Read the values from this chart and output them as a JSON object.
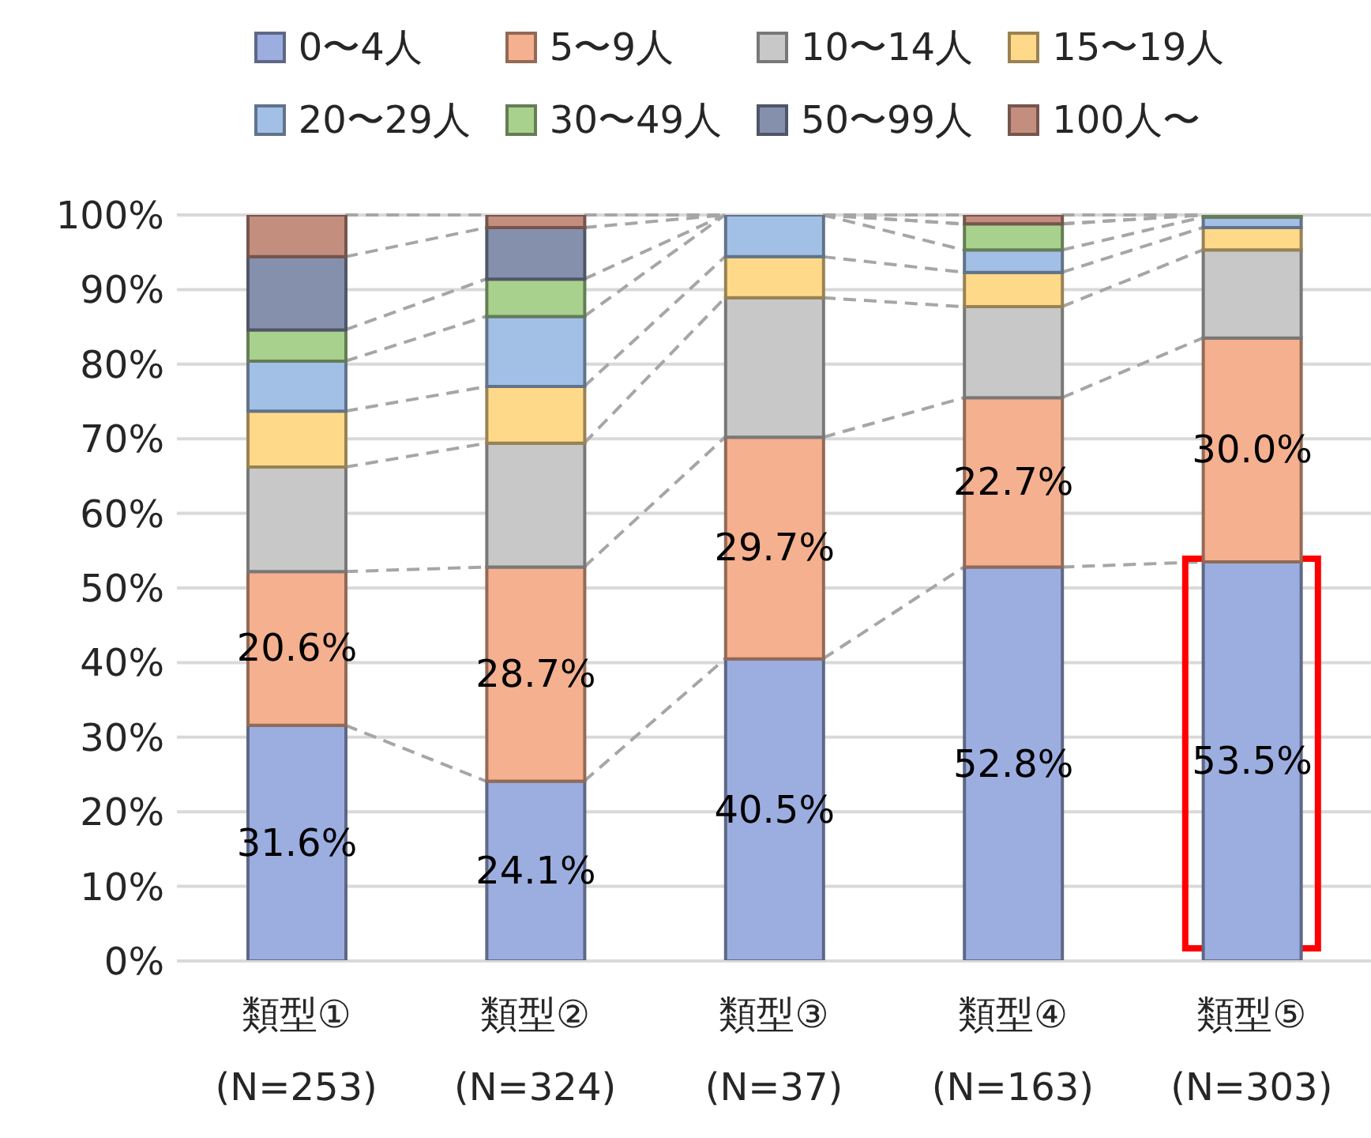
{
  "chart_data": {
    "type": "bar",
    "stacked": true,
    "categories": [
      "類型①\n(N=253)",
      "類型②\n(N=324)",
      "類型③\n(N=37)",
      "類型④\n(N=163)",
      "類型⑤\n(N=303)"
    ],
    "series": [
      {
        "name": "0〜4人",
        "color": "#9caee0",
        "values": [
          31.6,
          24.1,
          40.5,
          52.8,
          53.5
        ],
        "value_labels": [
          "31.6%",
          "24.1%",
          "40.5%",
          "52.8%",
          "53.5%"
        ]
      },
      {
        "name": "5〜9人",
        "color": "#f4b08f",
        "values": [
          20.6,
          28.7,
          29.7,
          22.7,
          30.0
        ],
        "value_labels": [
          "20.6%",
          "28.7%",
          "29.7%",
          "22.7%",
          "30.0%"
        ]
      },
      {
        "name": "10〜14人",
        "color": "#c8c8c8",
        "values": [
          14.0,
          16.6,
          18.7,
          12.2,
          11.8
        ]
      },
      {
        "name": "15〜19人",
        "color": "#ffd98a",
        "values": [
          7.5,
          7.6,
          5.5,
          4.6,
          3.0
        ]
      },
      {
        "name": "20〜29人",
        "color": "#a2c0e6",
        "values": [
          6.7,
          9.4,
          5.6,
          3.0,
          1.4
        ]
      },
      {
        "name": "30〜49人",
        "color": "#a9d18e",
        "values": [
          4.2,
          5.0,
          0,
          3.5,
          0.3
        ]
      },
      {
        "name": "50〜99人",
        "color": "#8590ad",
        "values": [
          9.8,
          6.9,
          0,
          0,
          0
        ]
      },
      {
        "name": "100人〜",
        "color": "#c48e7e",
        "values": [
          5.6,
          1.7,
          0,
          1.2,
          0
        ]
      }
    ],
    "ylim": [
      0,
      100
    ],
    "yticks": [
      {
        "value": 0,
        "label": "0%"
      },
      {
        "value": 10,
        "label": "10%"
      },
      {
        "value": 20,
        "label": "20%"
      },
      {
        "value": 30,
        "label": "30%"
      },
      {
        "value": 40,
        "label": "40%"
      },
      {
        "value": 50,
        "label": "50%"
      },
      {
        "value": 60,
        "label": "60%"
      },
      {
        "value": 70,
        "label": "70%"
      },
      {
        "value": 80,
        "label": "80%"
      },
      {
        "value": 90,
        "label": "90%"
      },
      {
        "value": 100,
        "label": "100%"
      }
    ],
    "grid": "y",
    "legend": "top"
  }
}
